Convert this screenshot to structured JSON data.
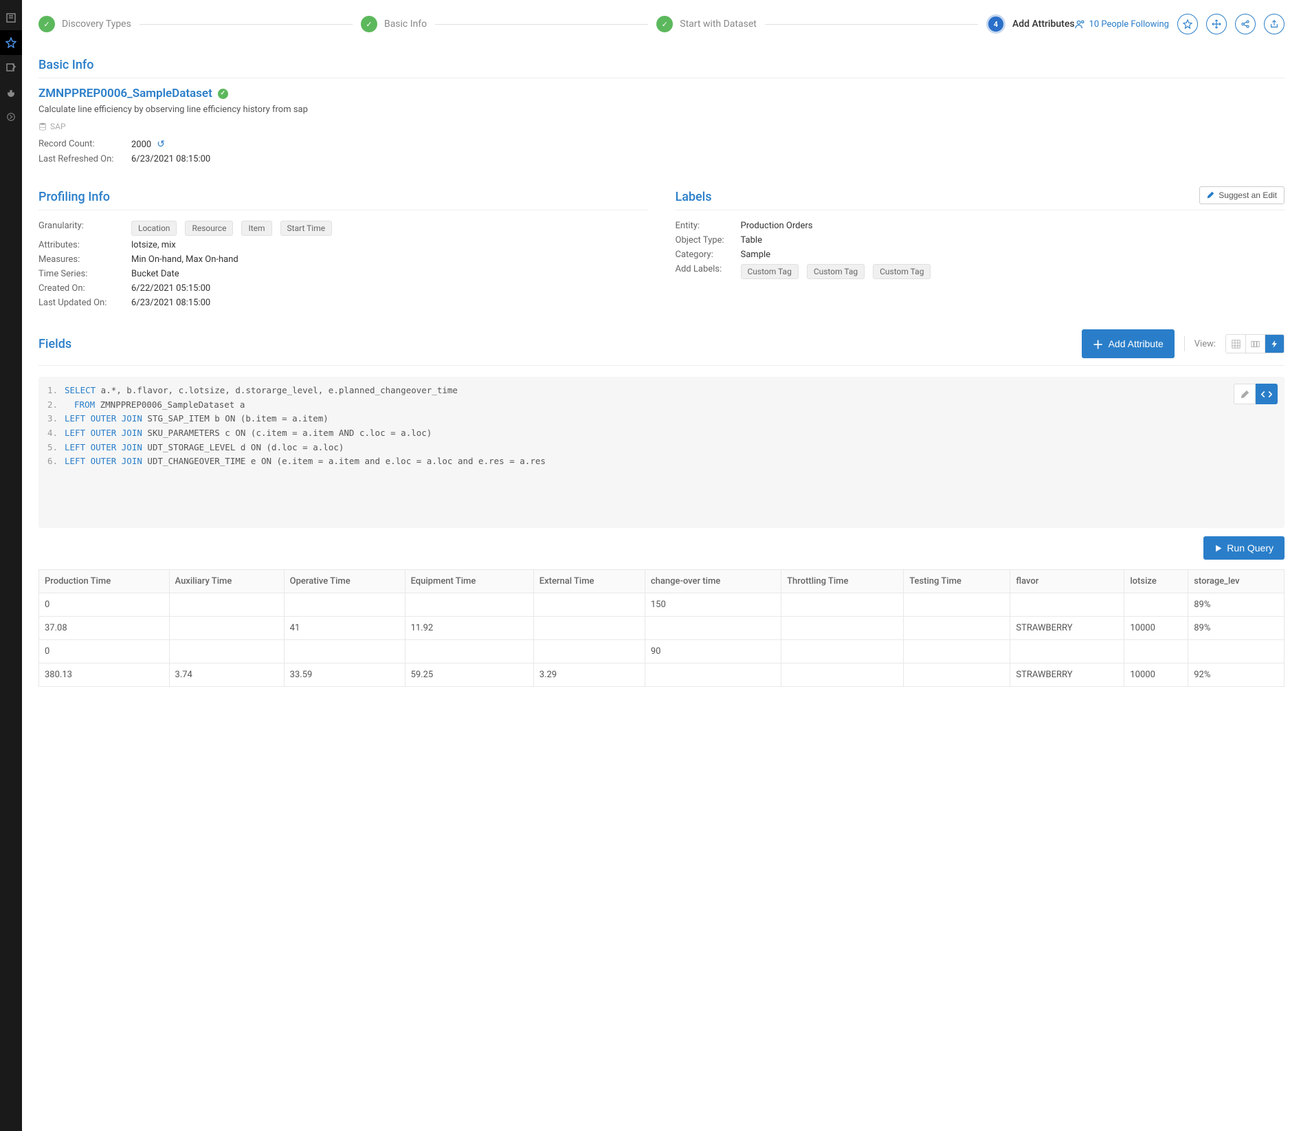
{
  "stepper": {
    "steps": [
      {
        "label": "Discovery Types",
        "done": true
      },
      {
        "label": "Basic Info",
        "done": true
      },
      {
        "label": "Start with Dataset",
        "done": true
      },
      {
        "label": "Add Attributes",
        "active": true,
        "num": "4"
      }
    ]
  },
  "follow": {
    "count": "10 People Following"
  },
  "basic": {
    "section": "Basic Info",
    "title": "ZMNPPREP0006_SampleDataset",
    "desc": "Calculate line efficiency by observing line efficiency history from sap",
    "source": "SAP",
    "record_count_label": "Record Count:",
    "record_count": "2000",
    "refreshed_label": "Last Refreshed On:",
    "refreshed": "6/23/2021 08:15:00"
  },
  "profiling": {
    "section": "Profiling Info",
    "granularity_label": "Granularity:",
    "granularity_chips": [
      "Location",
      "Resource",
      "Item",
      "Start Time"
    ],
    "attributes_label": "Attributes:",
    "attributes": "lotsize, mix",
    "measures_label": "Measures:",
    "measures": "Min On-hand, Max On-hand",
    "timeseries_label": "Time Series:",
    "timeseries": "Bucket Date",
    "created_label": "Created On:",
    "created": "6/22/2021 05:15:00",
    "updated_label": "Last Updated On:",
    "updated": "6/23/2021 08:15:00"
  },
  "labels": {
    "section": "Labels",
    "suggest": "Suggest an Edit",
    "entity_label": "Entity:",
    "entity": "Production Orders",
    "objtype_label": "Object Type:",
    "objtype": "Table",
    "category_label": "Category:",
    "category": "Sample",
    "addlabels_label": "Add Labels:",
    "addlabels_chips": [
      "Custom Tag",
      "Custom Tag",
      "Custom Tag"
    ]
  },
  "fields": {
    "title": "Fields",
    "add_btn": "Add Attribute",
    "view_label": "View:",
    "run_btn": "Run Query",
    "sql": [
      {
        "n": "1.",
        "pre": "SELECT",
        "rest": " a.*, b.flavor, c.lotsize, d.storarge_level, e.planned_changeover_time"
      },
      {
        "n": "2.",
        "pre": "FROM",
        "rest": " ZMNPPREP0006_SampleDataset a",
        "indent": true
      },
      {
        "n": "3.",
        "pre": "LEFT OUTER JOIN",
        "rest": " STG_SAP_ITEM b ON (b.item = a.item)"
      },
      {
        "n": "4.",
        "pre": "LEFT OUTER JOIN",
        "rest": " SKU_PARAMETERS c ON (c.item = a.item AND c.loc = a.loc)"
      },
      {
        "n": "5.",
        "pre": "LEFT OUTER JOIN",
        "rest": " UDT_STORAGE_LEVEL d ON (d.loc = a.loc)"
      },
      {
        "n": "6.",
        "pre": "LEFT OUTER JOIN",
        "rest": " UDT_CHANGEOVER_TIME e ON (e.item = a.item and e.loc = a.loc and e.res = a.res"
      }
    ],
    "columns": [
      "Production  Time",
      "Auxiliary Time",
      "Operative Time",
      "Equipment Time",
      "External Time",
      "change-over time",
      "Throttling Time",
      "Testing Time",
      "flavor",
      "lotsize",
      "storage_lev"
    ],
    "rows": [
      [
        "0",
        "",
        "",
        "",
        "",
        "150",
        "",
        "",
        "",
        "",
        "89%"
      ],
      [
        "37.08",
        "",
        "41",
        "11.92",
        "",
        "",
        "",
        "",
        "STRAWBERRY",
        "10000",
        "89%"
      ],
      [
        "0",
        "",
        "",
        "",
        "",
        "90",
        "",
        "",
        "",
        "",
        ""
      ],
      [
        "380.13",
        "3.74",
        "33.59",
        "59.25",
        "3.29",
        "",
        "",
        "",
        "STRAWBERRY",
        "10000",
        "92%"
      ]
    ]
  },
  "colors": {
    "accent": "#2a7ec9",
    "success": "#5cb85c"
  }
}
